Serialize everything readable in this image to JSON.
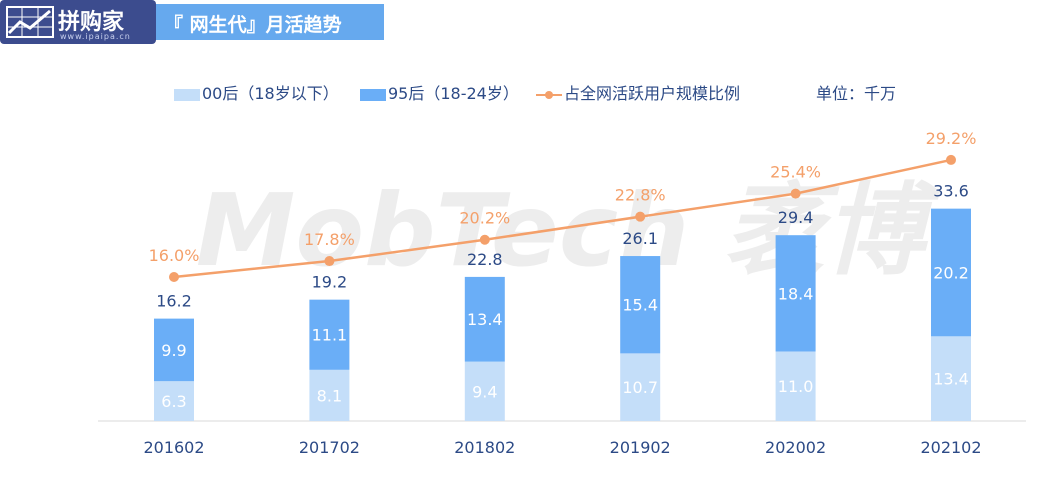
{
  "brand": {
    "name": "拼购家",
    "url": "www.ipaipa.cn"
  },
  "header": {
    "title": "『 网生代』月活趋势"
  },
  "watermark": {
    "text": "MobTech 袤博"
  },
  "legend": {
    "items": [
      "00后（18岁以下）",
      "95后（18-24岁）",
      "占全网活跃用户规模比例"
    ],
    "unit": "单位：千万"
  },
  "colors": {
    "series_00": "#c4def9",
    "series_95": "#6aaef7",
    "ratio_line": "#f4a06a",
    "total_label": "#2c4a86",
    "axis_label": "#2c4a86"
  },
  "chart_data": {
    "type": "bar",
    "stacked": true,
    "categories": [
      "201602",
      "201702",
      "201802",
      "201902",
      "202002",
      "202102"
    ],
    "series": [
      {
        "name": "00后（18岁以下）",
        "values": [
          6.3,
          8.1,
          9.4,
          10.7,
          11.0,
          13.4
        ]
      },
      {
        "name": "95后（18-24岁）",
        "values": [
          9.9,
          11.1,
          13.4,
          15.4,
          18.4,
          20.2
        ]
      }
    ],
    "totals": [
      16.2,
      19.2,
      22.8,
      26.1,
      29.4,
      33.6
    ],
    "line_series": {
      "name": "占全网活跃用户规模比例",
      "values": [
        "16.0%",
        "17.8%",
        "20.2%",
        "22.8%",
        "25.4%",
        "29.2%"
      ],
      "numeric": [
        16.0,
        17.8,
        20.2,
        22.8,
        25.4,
        29.2
      ]
    },
    "unit": "单位：千万",
    "legend_position": "top",
    "grid": false
  }
}
